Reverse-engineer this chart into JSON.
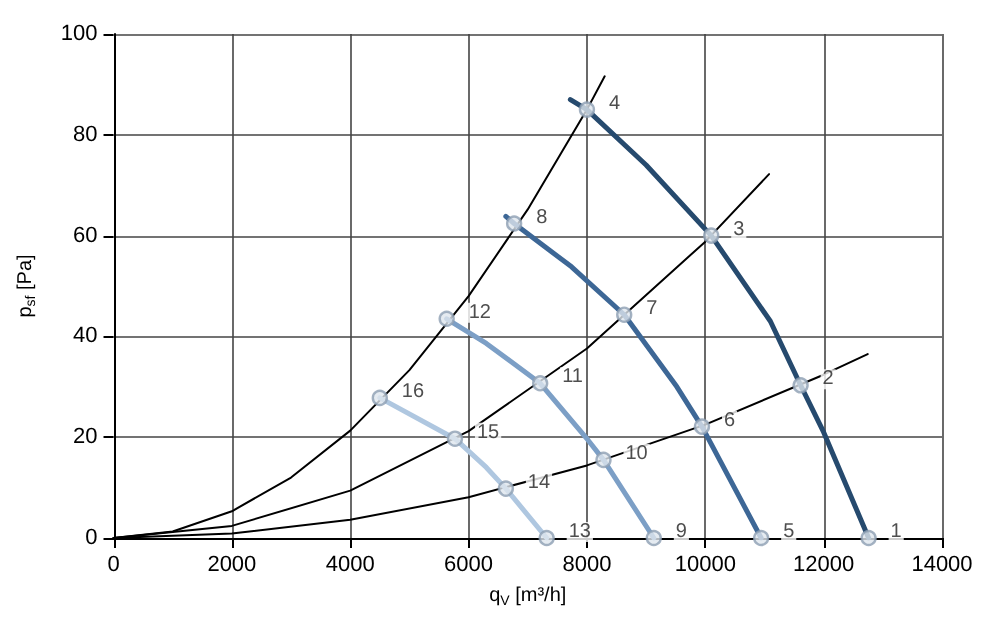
{
  "chart_data": {
    "type": "line",
    "xlabel": "q$_{V}$ [m³/h]",
    "ylabel": "p$_{sf}$ [Pa]",
    "xlim": [
      0,
      14000
    ],
    "xticks": [
      0,
      2000,
      4000,
      6000,
      8000,
      10000,
      12000,
      14000
    ],
    "ylim": [
      0,
      100
    ],
    "yticks": [
      0,
      20,
      40,
      60,
      80,
      100
    ],
    "grid": true,
    "marker": "none",
    "line_style": "solid",
    "series": [
      {
        "color": "#000000",
        "x": [
          0,
          1000,
          2000,
          3000,
          4000,
          5000,
          6000,
          7000,
          8000,
          8300
        ],
        "values": [
          0,
          1.3,
          5.3,
          12,
          21.3,
          33.3,
          48,
          65.2,
          85,
          91.6
        ]
      },
      {
        "color": "#000000",
        "x": [
          0,
          2000,
          4000,
          6000,
          8000,
          10000,
          11078
        ],
        "values": [
          0,
          2.4,
          9.4,
          21.2,
          37.6,
          58.8,
          72.2
        ]
      },
      {
        "color": "#000000",
        "x": [
          0,
          2000,
          4000,
          6000,
          8000,
          10000,
          12000,
          12744
        ],
        "values": [
          0,
          0.9,
          3.6,
          8.1,
          14.4,
          22.5,
          32.4,
          36.5
        ]
      },
      {
        "color": "#264a6e",
        "x": [
          7720,
          8000,
          9000,
          10100,
          11100,
          11611,
          12000,
          12760
        ],
        "values": [
          87,
          85,
          74,
          60,
          43,
          30.3,
          21,
          0
        ]
      },
      {
        "color": "#3d6796",
        "x": [
          6630,
          6770,
          7740,
          8630,
          9520,
          9944,
          10944
        ],
        "values": [
          63.8,
          62.4,
          53.8,
          44.3,
          30,
          22.1,
          0
        ]
      },
      {
        "color": "#7c9fc6",
        "x": [
          5630,
          6300,
          7210,
          8020,
          8280,
          9130
        ],
        "values": [
          43.5,
          38.6,
          30.7,
          19.4,
          15.5,
          0
        ]
      },
      {
        "color": "#afc7e0",
        "x": [
          4500,
          5770,
          6300,
          6630,
          7320
        ],
        "values": [
          27.8,
          19.7,
          14,
          9.8,
          0
        ]
      },
      {
        "type": "scatter",
        "marker": "circle",
        "color": "#8d9fb3",
        "x": [
          12760,
          11611,
          10100,
          8000,
          10944,
          9944,
          8630,
          6770,
          9130,
          8280,
          7210,
          5630,
          7320,
          6630,
          5770,
          4500
        ],
        "values": [
          0,
          30.3,
          60,
          85,
          0,
          22.1,
          44.3,
          62.4,
          0,
          15.5,
          30.7,
          43.5,
          0,
          9.8,
          19.7,
          27.8
        ]
      }
    ],
    "annotations": [
      {
        "text": "1",
        "x": 12760,
        "y": 0
      },
      {
        "text": "2",
        "x": 11611,
        "y": 30.3
      },
      {
        "text": "3",
        "x": 10100,
        "y": 60
      },
      {
        "text": "4",
        "x": 8000,
        "y": 85
      },
      {
        "text": "5",
        "x": 10944,
        "y": 0
      },
      {
        "text": "6",
        "x": 9944,
        "y": 22.1
      },
      {
        "text": "7",
        "x": 8630,
        "y": 44.3
      },
      {
        "text": "8",
        "x": 6770,
        "y": 62.4
      },
      {
        "text": "9",
        "x": 9130,
        "y": 0
      },
      {
        "text": "10",
        "x": 8280,
        "y": 15.5
      },
      {
        "text": "11",
        "x": 7210,
        "y": 30.7
      },
      {
        "text": "12",
        "x": 5630,
        "y": 43.5
      },
      {
        "text": "13",
        "x": 7320,
        "y": 0
      },
      {
        "text": "14",
        "x": 6630,
        "y": 9.8
      },
      {
        "text": "15",
        "x": 5770,
        "y": 19.7
      },
      {
        "text": "16",
        "x": 4500,
        "y": 27.8
      }
    ]
  }
}
